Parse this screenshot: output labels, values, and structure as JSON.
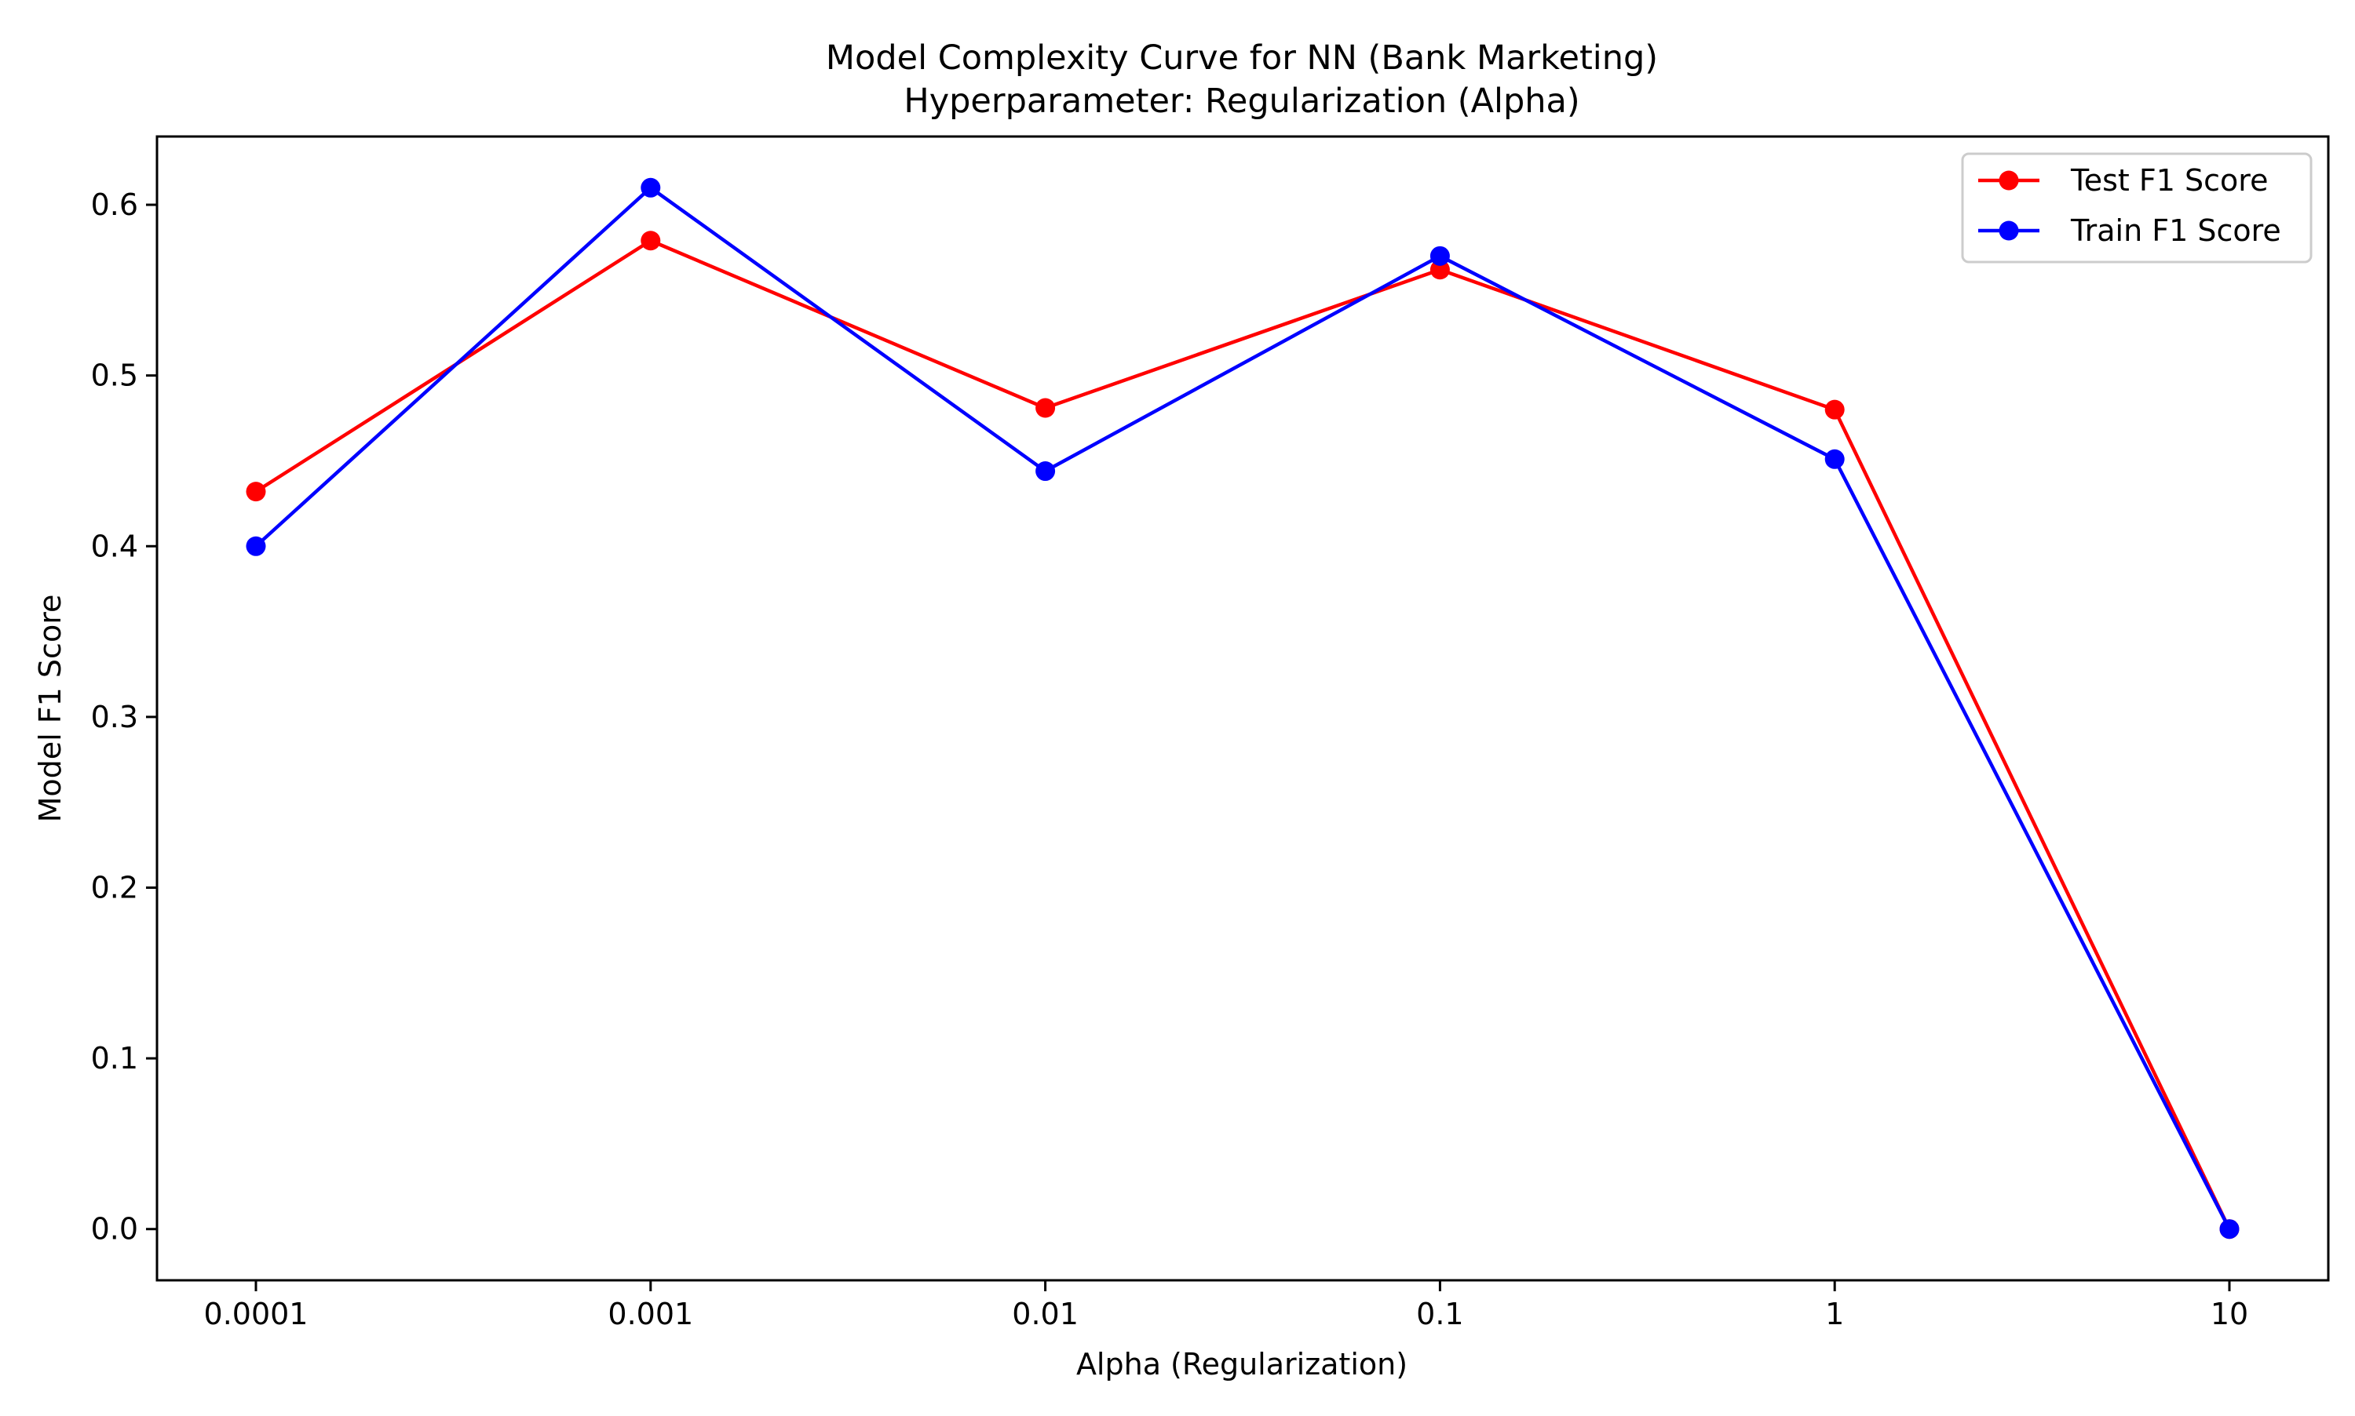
{
  "chart_data": {
    "type": "line",
    "title": "Model Complexity Curve for NN (Bank Marketing)",
    "subtitle": "Hyperparameter: Regularization (Alpha)",
    "xlabel": "Alpha (Regularization)",
    "ylabel": "Model F1 Score",
    "x_scale": "log",
    "categories": [
      "0.0001",
      "0.001",
      "0.01",
      "0.1",
      "1",
      "10"
    ],
    "ylim": [
      -0.03,
      0.64
    ],
    "yticks": [
      "0.0",
      "0.1",
      "0.2",
      "0.3",
      "0.4",
      "0.5",
      "0.6"
    ],
    "grid": false,
    "legend_position": "top-right",
    "series": [
      {
        "name": "Test F1 Score",
        "color": "#ff0000",
        "marker": "circle",
        "values": [
          0.432,
          0.579,
          0.481,
          0.562,
          0.48,
          0.0
        ]
      },
      {
        "name": "Train F1 Score",
        "color": "#0000ff",
        "marker": "circle",
        "values": [
          0.4,
          0.61,
          0.444,
          0.57,
          0.451,
          0.0
        ]
      }
    ]
  }
}
